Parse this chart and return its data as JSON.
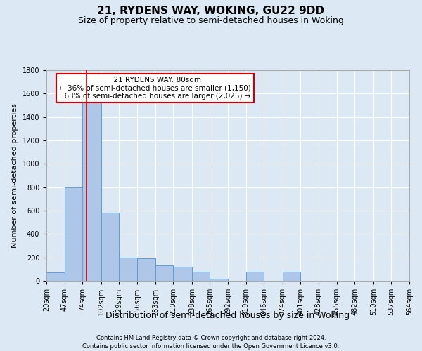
{
  "title": "21, RYDENS WAY, WOKING, GU22 9DD",
  "subtitle": "Size of property relative to semi-detached houses in Woking",
  "xlabel": "Distribution of semi-detached houses by size in Woking",
  "ylabel": "Number of semi-detached properties",
  "footer_line1": "Contains HM Land Registry data © Crown copyright and database right 2024.",
  "footer_line2": "Contains public sector information licensed under the Open Government Licence v3.0.",
  "bin_edges": [
    20,
    47,
    74,
    102,
    129,
    156,
    183,
    210,
    238,
    265,
    292,
    319,
    346,
    374,
    401,
    428,
    455,
    482,
    510,
    537,
    564
  ],
  "bar_heights": [
    70,
    800,
    1550,
    580,
    200,
    195,
    130,
    120,
    80,
    20,
    0,
    80,
    0,
    80,
    0,
    0,
    0,
    0,
    0,
    0
  ],
  "bar_color": "#aec6e8",
  "bar_edge_color": "#5a9fd4",
  "property_sqm": 80,
  "property_label": "21 RYDENS WAY: 80sqm",
  "smaller_pct": 36,
  "smaller_n": 1150,
  "larger_pct": 63,
  "larger_n": 2025,
  "annotation_box_color": "#ffffff",
  "annotation_box_edge": "#cc0000",
  "red_line_color": "#cc0000",
  "ylim": [
    0,
    1800
  ],
  "yticks": [
    0,
    200,
    400,
    600,
    800,
    1000,
    1200,
    1400,
    1600,
    1800
  ],
  "background_color": "#dce9f5",
  "grid_color": "#ffffff",
  "title_fontsize": 11,
  "subtitle_fontsize": 9,
  "xlabel_fontsize": 9,
  "ylabel_fontsize": 8,
  "tick_fontsize": 7,
  "annotation_fontsize": 7.5,
  "footer_fontsize": 6
}
